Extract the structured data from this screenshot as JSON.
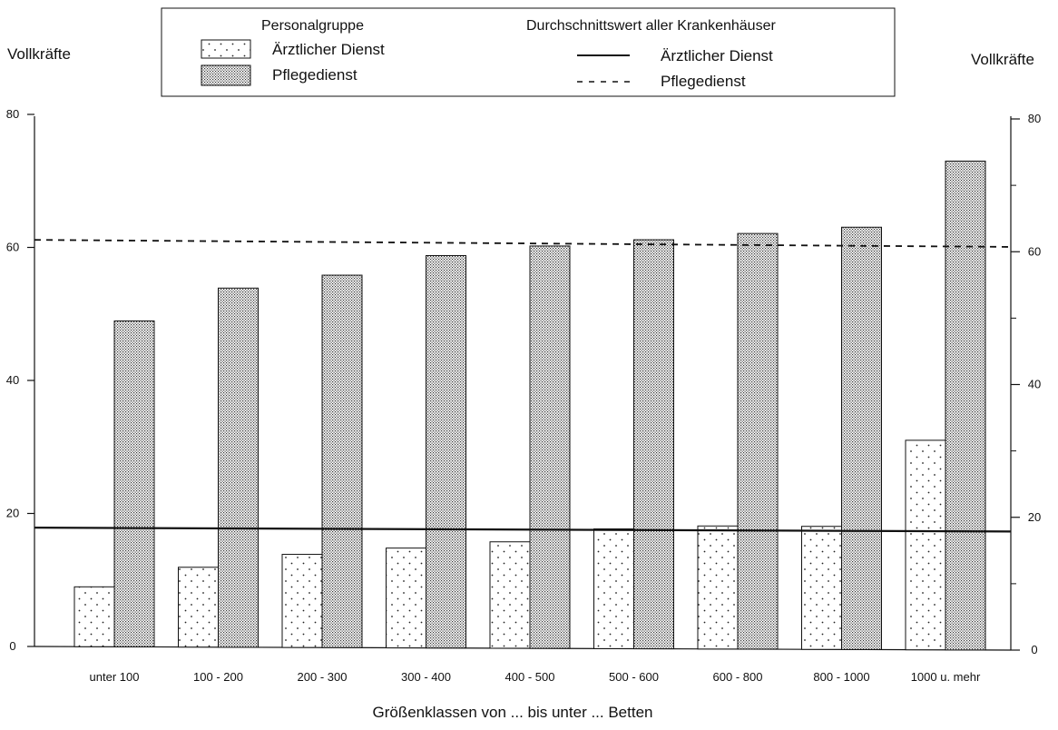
{
  "chart_data": {
    "type": "bar",
    "title": "",
    "ylabel_left": "Vollkräfte",
    "ylabel_right": "Vollkräfte",
    "xlabel": "Größenklassen von ... bis unter ... Betten",
    "ylim": [
      0,
      80
    ],
    "yticks": [
      0,
      20,
      40,
      60,
      80
    ],
    "categories": [
      "unter 100",
      "100 - 200",
      "200 - 300",
      "300 - 400",
      "400 - 500",
      "500 - 600",
      "600 - 800",
      "800 - 1000",
      "1000 u. mehr"
    ],
    "series": [
      {
        "name": "Ärztlicher Dienst",
        "values": [
          9,
          12,
          14,
          15,
          16,
          18,
          18.5,
          18.5,
          31.5
        ],
        "pattern": "sparse-dots"
      },
      {
        "name": "Pflegedienst",
        "values": [
          49,
          54,
          56,
          59,
          60.5,
          61.5,
          62.5,
          63.5,
          73.5
        ],
        "pattern": "dense-dots"
      }
    ],
    "reference_lines": [
      {
        "name": "Ärztlicher Dienst",
        "value": 18,
        "style": "solid"
      },
      {
        "name": "Pflegedienst",
        "value": 61,
        "style": "dashed"
      }
    ],
    "legend": {
      "placement": "top-center",
      "group_title": "Personalgruppe",
      "average_title": "Durchschnittswert aller Krankenhäuser"
    },
    "grid": false
  }
}
